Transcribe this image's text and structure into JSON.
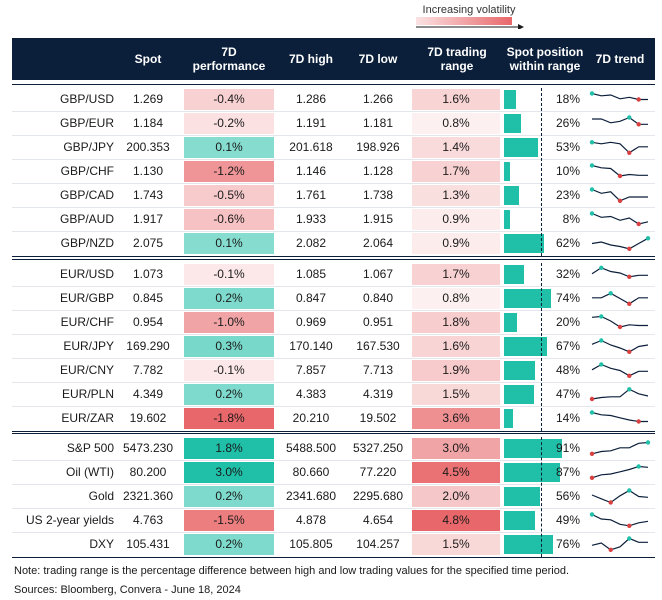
{
  "legend": {
    "label": "Increasing volatility"
  },
  "headers": {
    "spot": "Spot",
    "perf": "7D performance",
    "high": "7D high",
    "low": "7D low",
    "range": "7D trading range",
    "position": "Spot position within range",
    "trend": "7D trend"
  },
  "colors": {
    "header_bg": "#0b1f3a",
    "teal": "#1fbfa8",
    "red_strong": "#e8676a",
    "green_strong": "#1fbfa8",
    "trend_line": "#0b1f3a",
    "trend_min": "#d94040",
    "trend_max": "#1fbfa8"
  },
  "chart_data": {
    "type": "table",
    "groups": [
      {
        "rows": [
          {
            "pair": "GBP/USD",
            "spot": "1.269",
            "perf": "-0.4%",
            "perf_val": -0.4,
            "high": "1.286",
            "low": "1.266",
            "range": "1.6%",
            "range_val": 1.6,
            "pos": "18%",
            "pos_val": 0.18,
            "trend": [
              0.9,
              0.75,
              0.8,
              0.55,
              0.65,
              0.5,
              0.5
            ]
          },
          {
            "pair": "GBP/EUR",
            "spot": "1.184",
            "perf": "-0.2%",
            "perf_val": -0.2,
            "high": "1.191",
            "low": "1.181",
            "range": "0.8%",
            "range_val": 0.8,
            "pos": "26%",
            "pos_val": 0.26,
            "trend": [
              0.8,
              0.8,
              0.55,
              0.65,
              0.9,
              0.45,
              0.45
            ]
          },
          {
            "pair": "GBP/JPY",
            "spot": "200.353",
            "perf": "0.1%",
            "perf_val": 0.1,
            "high": "201.618",
            "low": "198.926",
            "range": "1.4%",
            "range_val": 1.4,
            "pos": "53%",
            "pos_val": 0.53,
            "trend": [
              0.85,
              0.75,
              0.85,
              0.75,
              0.15,
              0.55,
              0.55
            ]
          },
          {
            "pair": "GBP/CHF",
            "spot": "1.130",
            "perf": "-1.2%",
            "perf_val": -1.2,
            "high": "1.146",
            "low": "1.128",
            "range": "1.7%",
            "range_val": 1.7,
            "pos": "10%",
            "pos_val": 0.1,
            "trend": [
              0.9,
              0.75,
              0.7,
              0.2,
              0.3,
              0.25,
              0.25
            ]
          },
          {
            "pair": "GBP/CAD",
            "spot": "1.743",
            "perf": "-0.5%",
            "perf_val": -0.5,
            "high": "1.761",
            "low": "1.738",
            "range": "1.3%",
            "range_val": 1.3,
            "pos": "23%",
            "pos_val": 0.23,
            "trend": [
              0.9,
              0.65,
              0.75,
              0.15,
              0.4,
              0.4,
              0.4
            ]
          },
          {
            "pair": "GBP/AUD",
            "spot": "1.917",
            "perf": "-0.6%",
            "perf_val": -0.6,
            "high": "1.933",
            "low": "1.915",
            "range": "0.9%",
            "range_val": 0.9,
            "pos": "8%",
            "pos_val": 0.08,
            "trend": [
              0.9,
              0.65,
              0.7,
              0.45,
              0.6,
              0.2,
              0.35
            ]
          },
          {
            "pair": "GBP/NZD",
            "spot": "2.075",
            "perf": "0.1%",
            "perf_val": 0.1,
            "high": "2.082",
            "low": "2.064",
            "range": "0.9%",
            "range_val": 0.9,
            "pos": "62%",
            "pos_val": 0.62,
            "trend": [
              0.5,
              0.6,
              0.4,
              0.3,
              0.15,
              0.5,
              0.85
            ]
          }
        ]
      },
      {
        "rows": [
          {
            "pair": "EUR/USD",
            "spot": "1.073",
            "perf": "-0.1%",
            "perf_val": -0.1,
            "high": "1.085",
            "low": "1.067",
            "range": "1.7%",
            "range_val": 1.7,
            "pos": "32%",
            "pos_val": 0.32,
            "trend": [
              0.55,
              0.95,
              0.7,
              0.6,
              0.35,
              0.45,
              0.45
            ]
          },
          {
            "pair": "EUR/GBP",
            "spot": "0.845",
            "perf": "0.2%",
            "perf_val": 0.2,
            "high": "0.847",
            "low": "0.840",
            "range": "0.8%",
            "range_val": 0.8,
            "pos": "74%",
            "pos_val": 0.74,
            "trend": [
              0.55,
              0.55,
              0.85,
              0.5,
              0.15,
              0.55,
              0.55
            ]
          },
          {
            "pair": "EUR/CHF",
            "spot": "0.954",
            "perf": "-1.0%",
            "perf_val": -1.0,
            "high": "0.969",
            "low": "0.951",
            "range": "1.8%",
            "range_val": 1.8,
            "pos": "20%",
            "pos_val": 0.2,
            "trend": [
              0.85,
              0.9,
              0.6,
              0.2,
              0.35,
              0.3,
              0.3
            ]
          },
          {
            "pair": "EUR/JPY",
            "spot": "169.290",
            "perf": "0.3%",
            "perf_val": 0.3,
            "high": "170.140",
            "low": "167.530",
            "range": "1.6%",
            "range_val": 1.6,
            "pos": "67%",
            "pos_val": 0.67,
            "trend": [
              0.65,
              0.9,
              0.6,
              0.4,
              0.15,
              0.5,
              0.6
            ]
          },
          {
            "pair": "EUR/CNY",
            "spot": "7.782",
            "perf": "-0.1%",
            "perf_val": -0.1,
            "high": "7.857",
            "low": "7.713",
            "range": "1.9%",
            "range_val": 1.9,
            "pos": "48%",
            "pos_val": 0.48,
            "trend": [
              0.55,
              0.9,
              0.65,
              0.5,
              0.15,
              0.45,
              0.45
            ]
          },
          {
            "pair": "EUR/PLN",
            "spot": "4.349",
            "perf": "0.2%",
            "perf_val": 0.2,
            "high": "4.383",
            "low": "4.319",
            "range": "1.5%",
            "range_val": 1.5,
            "pos": "47%",
            "pos_val": 0.47,
            "trend": [
              0.2,
              0.3,
              0.35,
              0.35,
              0.85,
              0.55,
              0.4
            ]
          },
          {
            "pair": "EUR/ZAR",
            "spot": "19.602",
            "perf": "-1.8%",
            "perf_val": -1.8,
            "high": "20.210",
            "low": "19.502",
            "range": "3.6%",
            "range_val": 3.6,
            "pos": "14%",
            "pos_val": 0.14,
            "trend": [
              0.9,
              0.75,
              0.7,
              0.55,
              0.4,
              0.3,
              0.3
            ]
          }
        ]
      },
      {
        "rows": [
          {
            "pair": "S&P 500",
            "spot": "5473.230",
            "perf": "1.8%",
            "perf_val": 1.8,
            "high": "5488.500",
            "low": "5327.250",
            "range": "3.0%",
            "range_val": 3.0,
            "pos": "91%",
            "pos_val": 0.91,
            "trend": [
              0.15,
              0.3,
              0.35,
              0.55,
              0.55,
              0.85,
              0.9
            ]
          },
          {
            "pair": "Oil (WTI)",
            "spot": "80.200",
            "perf": "3.0%",
            "perf_val": 3.0,
            "high": "80.660",
            "low": "77.220",
            "range": "4.5%",
            "range_val": 4.5,
            "pos": "87%",
            "pos_val": 0.87,
            "trend": [
              0.15,
              0.35,
              0.4,
              0.55,
              0.7,
              0.9,
              0.85
            ]
          },
          {
            "pair": "Gold",
            "spot": "2321.360",
            "perf": "0.2%",
            "perf_val": 0.2,
            "high": "2341.680",
            "low": "2295.680",
            "range": "2.0%",
            "range_val": 2.0,
            "pos": "56%",
            "pos_val": 0.56,
            "trend": [
              0.6,
              0.35,
              0.1,
              0.55,
              0.9,
              0.5,
              0.45
            ]
          },
          {
            "pair": "US 2-year yields",
            "spot": "4.763",
            "perf": "-1.5%",
            "perf_val": -1.5,
            "high": "4.878",
            "low": "4.654",
            "range": "4.8%",
            "range_val": 4.8,
            "pos": "49%",
            "pos_val": 0.49,
            "trend": [
              0.9,
              0.6,
              0.55,
              0.25,
              0.15,
              0.35,
              0.45
            ]
          },
          {
            "pair": "DXY",
            "spot": "105.431",
            "perf": "0.2%",
            "perf_val": 0.2,
            "high": "105.805",
            "low": "104.257",
            "range": "1.5%",
            "range_val": 1.5,
            "pos": "76%",
            "pos_val": 0.76,
            "trend": [
              0.45,
              0.6,
              0.15,
              0.35,
              0.9,
              0.65,
              0.65
            ]
          }
        ]
      }
    ]
  },
  "footer": {
    "note": "Note: trading range is the percentage difference between high and low trading values for the specified time period.",
    "source": "Sources: Bloomberg, Convera - June 18, 2024"
  }
}
